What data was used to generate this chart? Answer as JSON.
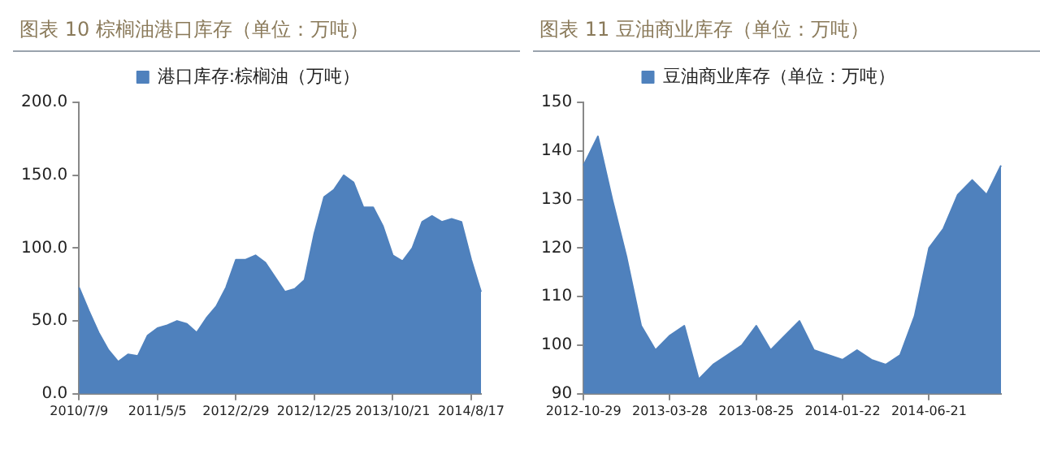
{
  "chart_data": [
    {
      "type": "area",
      "title": "图表 10 棕榈油港口库存（单位：万吨）",
      "categories": [
        "2010/7/9",
        null,
        null,
        null,
        null,
        null,
        null,
        null,
        "2011/5/5",
        null,
        null,
        null,
        null,
        null,
        null,
        null,
        "2012/2/29",
        null,
        null,
        null,
        null,
        null,
        null,
        null,
        "2012/12/25",
        null,
        null,
        null,
        null,
        null,
        null,
        null,
        "2013/10/21",
        null,
        null,
        null,
        null,
        null,
        null,
        null,
        "2014/8/17",
        null
      ],
      "series": [
        {
          "name": "港口库存:棕榈油（万吨）",
          "color": "#4f81bd",
          "values": [
            73,
            57,
            42,
            30,
            22,
            27,
            26,
            40,
            45,
            47,
            50,
            48,
            42,
            52,
            60,
            73,
            92,
            92,
            95,
            90,
            80,
            70,
            72,
            78,
            110,
            135,
            140,
            150,
            145,
            128,
            128,
            115,
            95,
            91,
            100,
            118,
            122,
            118,
            120,
            118,
            92,
            70
          ]
        }
      ],
      "ylim": [
        0,
        200
      ],
      "yticks": [
        {
          "value": 0,
          "label": "0.0"
        },
        {
          "value": 50,
          "label": "50.0"
        },
        {
          "value": 100,
          "label": "100.0"
        },
        {
          "value": 150,
          "label": "150.0"
        },
        {
          "value": 200,
          "label": "200.0"
        }
      ],
      "grid": false,
      "legend": "top"
    },
    {
      "type": "area",
      "title": "图表 11 豆油商业库存（单位：万吨）",
      "categories": [
        "2012-10-29",
        null,
        null,
        null,
        null,
        null,
        "2013-03-28",
        null,
        null,
        null,
        null,
        null,
        "2013-08-25",
        null,
        null,
        null,
        null,
        null,
        "2014-01-22",
        null,
        null,
        null,
        null,
        null,
        "2014-06-21",
        null,
        null,
        null,
        null,
        null
      ],
      "series": [
        {
          "name": "豆油商业库存（单位：万吨）",
          "color": "#4f81bd",
          "values": [
            137,
            143,
            130,
            118,
            104,
            99,
            102,
            104,
            93,
            96,
            98,
            100,
            104,
            99,
            102,
            105,
            99,
            98,
            97,
            99,
            97,
            96,
            98,
            106,
            120,
            124,
            131,
            134,
            131,
            137
          ]
        }
      ],
      "ylim": [
        90,
        150
      ],
      "yticks": [
        90,
        100,
        110,
        120,
        130,
        140,
        150
      ],
      "grid": false,
      "legend": "top"
    }
  ]
}
